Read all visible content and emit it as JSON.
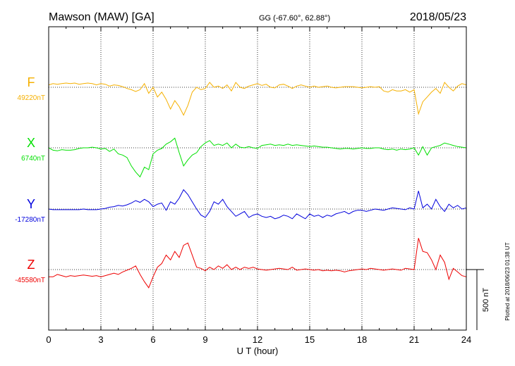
{
  "header": {
    "station": "Mawson (MAW)  [GA]",
    "coords": "GG (-67.60°,  62.88°)",
    "date": "2018/05/23"
  },
  "plotted_note": "Plotted at 2018/06/23 01:38 UT",
  "chart_data": {
    "type": "line",
    "xlabel": "U T (hour)",
    "xlim": [
      0,
      24
    ],
    "xticks": [
      "0",
      "3",
      "6",
      "9",
      "12",
      "15",
      "18",
      "21",
      "24"
    ],
    "grid": true,
    "scale_bar": {
      "label": "500 nT",
      "value_nT": 500
    },
    "colors": {
      "F": "#f5b000",
      "X": "#00e000",
      "Y": "#0000dd",
      "Z": "#ee0000"
    },
    "series": [
      {
        "name": "F",
        "baseline_label": "49220nT",
        "baseline_nT": 49220,
        "x": [
          0,
          0.25,
          0.5,
          0.75,
          1,
          1.25,
          1.5,
          1.75,
          2,
          2.25,
          2.5,
          2.75,
          3,
          3.25,
          3.5,
          3.75,
          4,
          4.25,
          4.5,
          4.75,
          5,
          5.25,
          5.5,
          5.75,
          6,
          6.25,
          6.5,
          6.75,
          7,
          7.25,
          7.5,
          7.75,
          8,
          8.25,
          8.5,
          8.75,
          9,
          9.25,
          9.5,
          9.75,
          10,
          10.25,
          10.5,
          10.75,
          11,
          11.25,
          11.5,
          11.75,
          12,
          12.25,
          12.5,
          12.75,
          13,
          13.25,
          13.5,
          13.75,
          14,
          14.25,
          14.5,
          14.75,
          15,
          15.25,
          15.5,
          15.75,
          16,
          16.25,
          16.5,
          16.75,
          17,
          17.25,
          17.5,
          17.75,
          18,
          18.25,
          18.5,
          18.75,
          19,
          19.25,
          19.5,
          19.75,
          20,
          20.25,
          20.5,
          20.75,
          21,
          21.25,
          21.5,
          21.75,
          22,
          22.25,
          22.5,
          22.75,
          23,
          23.25,
          23.5,
          23.75,
          24
        ],
        "y": [
          20,
          30,
          25,
          30,
          35,
          30,
          35,
          25,
          30,
          35,
          30,
          20,
          30,
          25,
          10,
          20,
          15,
          5,
          -10,
          -20,
          -35,
          -20,
          30,
          -50,
          0,
          -80,
          -40,
          -100,
          -180,
          -110,
          -160,
          -230,
          -150,
          -40,
          0,
          -20,
          -10,
          40,
          0,
          10,
          -10,
          20,
          -30,
          40,
          0,
          -10,
          10,
          20,
          30,
          15,
          25,
          0,
          -5,
          20,
          25,
          10,
          -10,
          10,
          20,
          10,
          0,
          10,
          0,
          5,
          10,
          0,
          -5,
          0,
          5,
          5,
          5,
          0,
          -5,
          0,
          5,
          0,
          5,
          -30,
          -40,
          -20,
          -30,
          -30,
          -20,
          -40,
          -20,
          -220,
          -120,
          -80,
          -40,
          -10,
          -50,
          40,
          0,
          -30,
          10,
          30,
          20
        ]
      },
      {
        "name": "X",
        "baseline_label": "6740nT",
        "baseline_nT": 6740,
        "x": [
          0,
          0.25,
          0.5,
          0.75,
          1,
          1.25,
          1.5,
          1.75,
          2,
          2.25,
          2.5,
          2.75,
          3,
          3.25,
          3.5,
          3.75,
          4,
          4.25,
          4.5,
          4.75,
          5,
          5.25,
          5.5,
          5.75,
          6,
          6.25,
          6.5,
          6.75,
          7,
          7.25,
          7.5,
          7.75,
          8,
          8.25,
          8.5,
          8.75,
          9,
          9.25,
          9.5,
          9.75,
          10,
          10.25,
          10.5,
          10.75,
          11,
          11.25,
          11.5,
          11.75,
          12,
          12.25,
          12.5,
          12.75,
          13,
          13.25,
          13.5,
          13.75,
          14,
          14.25,
          14.5,
          14.75,
          15,
          15.25,
          15.5,
          15.75,
          16,
          16.25,
          16.5,
          16.75,
          17,
          17.25,
          17.5,
          17.75,
          18,
          18.25,
          18.5,
          18.75,
          19,
          19.25,
          19.5,
          19.75,
          20,
          20.25,
          20.5,
          20.75,
          21,
          21.25,
          21.5,
          21.75,
          22,
          22.25,
          22.5,
          22.75,
          23,
          23.25,
          23.5,
          23.75,
          24
        ],
        "y": [
          0,
          -20,
          -25,
          -15,
          -20,
          -20,
          -15,
          -5,
          0,
          0,
          5,
          0,
          -10,
          -5,
          -30,
          -10,
          -50,
          -60,
          -80,
          -150,
          -200,
          -240,
          -160,
          -180,
          -50,
          -20,
          -5,
          30,
          50,
          80,
          -40,
          -150,
          -100,
          -60,
          -40,
          10,
          40,
          60,
          20,
          30,
          20,
          40,
          0,
          30,
          5,
          0,
          10,
          0,
          -5,
          20,
          25,
          30,
          20,
          25,
          20,
          30,
          20,
          25,
          20,
          15,
          10,
          15,
          10,
          5,
          5,
          0,
          -5,
          -10,
          -5,
          -5,
          -10,
          -5,
          0,
          -5,
          -5,
          0,
          0,
          -10,
          -15,
          -10,
          -20,
          -10,
          -15,
          -10,
          0,
          -60,
          10,
          -60,
          0,
          10,
          20,
          40,
          30,
          20,
          10,
          5,
          0
        ]
      },
      {
        "name": "Y",
        "baseline_label": "-17280nT",
        "baseline_nT": -17280,
        "x": [
          0,
          0.25,
          0.5,
          0.75,
          1,
          1.25,
          1.5,
          1.75,
          2,
          2.25,
          2.5,
          2.75,
          3,
          3.25,
          3.5,
          3.75,
          4,
          4.25,
          4.5,
          4.75,
          5,
          5.25,
          5.5,
          5.75,
          6,
          6.25,
          6.5,
          6.75,
          7,
          7.25,
          7.5,
          7.75,
          8,
          8.25,
          8.5,
          8.75,
          9,
          9.25,
          9.5,
          9.75,
          10,
          10.25,
          10.5,
          10.75,
          11,
          11.25,
          11.5,
          11.75,
          12,
          12.25,
          12.5,
          12.75,
          13,
          13.25,
          13.5,
          13.75,
          14,
          14.25,
          14.5,
          14.75,
          15,
          15.25,
          15.5,
          15.75,
          16,
          16.25,
          16.5,
          16.75,
          17,
          17.25,
          17.5,
          17.75,
          18,
          18.25,
          18.5,
          18.75,
          19,
          19.25,
          19.5,
          19.75,
          20,
          20.25,
          20.5,
          20.75,
          21,
          21.25,
          21.5,
          21.75,
          22,
          22.25,
          22.5,
          22.75,
          23,
          23.25,
          23.5,
          23.75,
          24
        ],
        "y": [
          0,
          -5,
          -5,
          -5,
          -5,
          -5,
          -5,
          -5,
          0,
          -5,
          -5,
          -5,
          0,
          5,
          15,
          20,
          30,
          25,
          35,
          50,
          70,
          55,
          80,
          60,
          20,
          40,
          50,
          -10,
          60,
          40,
          90,
          160,
          120,
          60,
          0,
          -50,
          -70,
          -20,
          60,
          40,
          80,
          20,
          -20,
          -60,
          -40,
          -20,
          -70,
          -50,
          -40,
          -60,
          -70,
          -60,
          -80,
          -70,
          -50,
          -60,
          -80,
          -40,
          -60,
          -80,
          -40,
          -60,
          -50,
          -70,
          -50,
          -60,
          -40,
          -30,
          -20,
          -40,
          -20,
          -10,
          -10,
          -20,
          -10,
          0,
          -5,
          -10,
          0,
          10,
          5,
          0,
          -5,
          10,
          0,
          150,
          10,
          40,
          0,
          80,
          20,
          -20,
          40,
          10,
          30,
          0,
          10
        ]
      },
      {
        "name": "Z",
        "baseline_label": "-45580nT",
        "baseline_nT": -45580,
        "x": [
          0,
          0.25,
          0.5,
          0.75,
          1,
          1.25,
          1.5,
          1.75,
          2,
          2.25,
          2.5,
          2.75,
          3,
          3.25,
          3.5,
          3.75,
          4,
          4.25,
          4.5,
          4.75,
          5,
          5.25,
          5.5,
          5.75,
          6,
          6.25,
          6.5,
          6.75,
          7,
          7.25,
          7.5,
          7.75,
          8,
          8.25,
          8.5,
          8.75,
          9,
          9.25,
          9.5,
          9.75,
          10,
          10.25,
          10.5,
          10.75,
          11,
          11.25,
          11.5,
          11.75,
          12,
          12.25,
          12.5,
          12.75,
          13,
          13.25,
          13.5,
          13.75,
          14,
          14.25,
          14.5,
          14.75,
          15,
          15.25,
          15.5,
          15.75,
          16,
          16.25,
          16.5,
          16.75,
          17,
          17.25,
          17.5,
          17.75,
          18,
          18.25,
          18.5,
          18.75,
          19,
          19.25,
          19.5,
          19.75,
          20,
          20.25,
          20.5,
          20.75,
          21,
          21.25,
          21.5,
          21.75,
          22,
          22.25,
          22.5,
          22.75,
          23,
          23.25,
          23.5,
          23.75,
          24
        ],
        "y": [
          -60,
          -60,
          -40,
          -50,
          -60,
          -50,
          -55,
          -50,
          -45,
          -50,
          -55,
          -50,
          -60,
          -50,
          -40,
          -30,
          -40,
          -20,
          -5,
          10,
          30,
          -40,
          -100,
          -150,
          -60,
          20,
          50,
          120,
          80,
          150,
          100,
          200,
          220,
          120,
          20,
          10,
          -10,
          20,
          0,
          30,
          10,
          40,
          0,
          20,
          0,
          20,
          10,
          20,
          5,
          0,
          -5,
          0,
          5,
          10,
          5,
          0,
          20,
          -5,
          0,
          5,
          0,
          -5,
          0,
          -10,
          -5,
          -10,
          -5,
          -10,
          -20,
          -10,
          -5,
          0,
          5,
          0,
          10,
          5,
          0,
          -5,
          0,
          5,
          0,
          -5,
          10,
          5,
          0,
          260,
          150,
          140,
          80,
          0,
          120,
          60,
          -80,
          10,
          -20,
          -50,
          -60
        ]
      }
    ]
  }
}
